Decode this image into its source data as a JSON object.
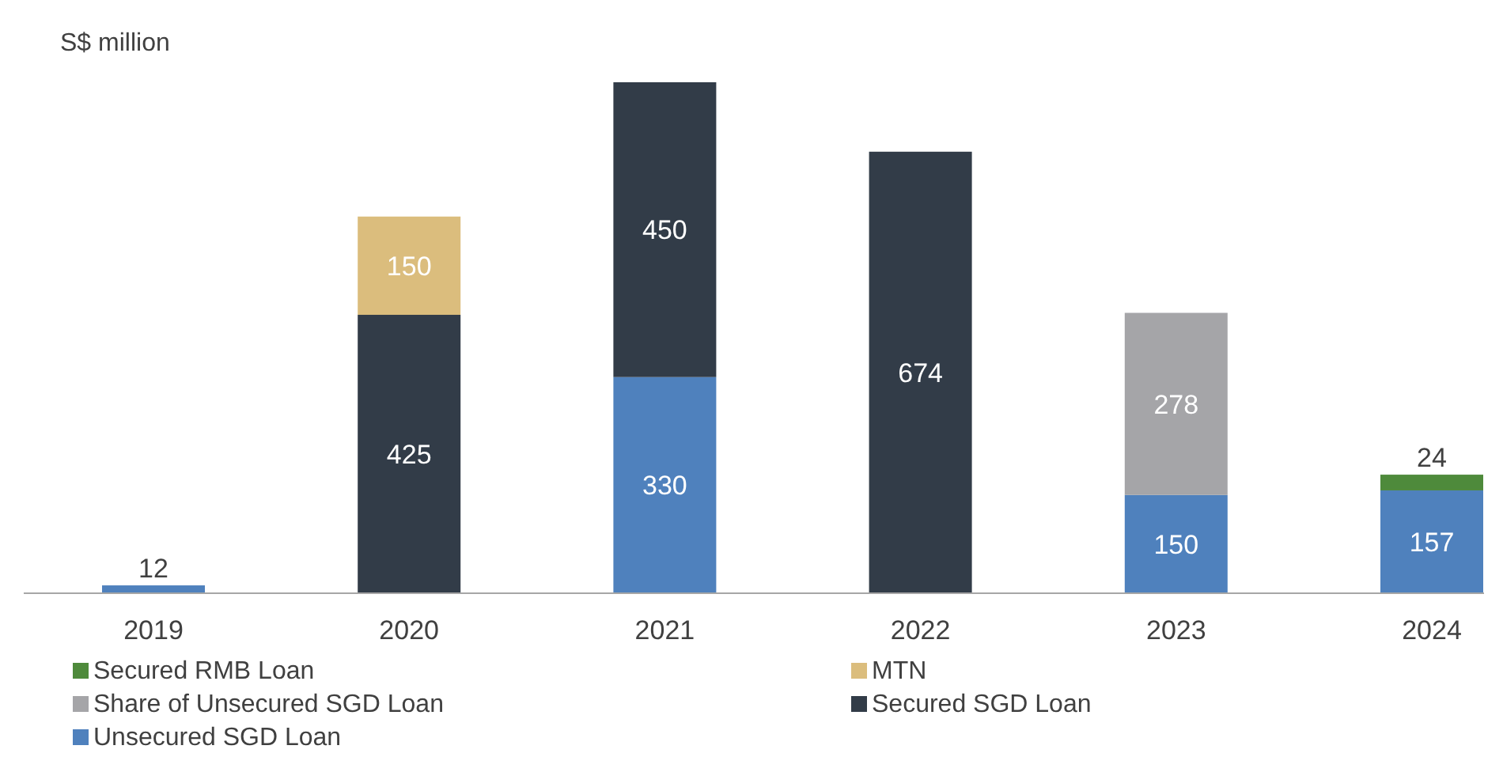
{
  "chart_data": {
    "type": "bar",
    "stacked": true,
    "ylabel": "S$ million",
    "categories": [
      "2019",
      "2020",
      "2021",
      "2022",
      "2023",
      "2024"
    ],
    "series": [
      {
        "name": "Unsecured SGD Loan",
        "color": "#4f81bd",
        "values": [
          12,
          null,
          330,
          null,
          150,
          157
        ]
      },
      {
        "name": "Secured SGD Loan",
        "color": "#323c48",
        "values": [
          null,
          425,
          450,
          674,
          null,
          null
        ]
      },
      {
        "name": "Share of Unsecured SGD Loan",
        "color": "#a5a5a8",
        "values": [
          null,
          null,
          null,
          null,
          278,
          null
        ]
      },
      {
        "name": "MTN",
        "color": "#dbbd7d",
        "values": [
          null,
          150,
          null,
          null,
          null,
          null
        ]
      },
      {
        "name": "Secured RMB Loan",
        "color": "#4e8a3b",
        "values": [
          null,
          null,
          null,
          null,
          null,
          24
        ]
      }
    ],
    "data_labels": true,
    "legend": "bottom"
  }
}
